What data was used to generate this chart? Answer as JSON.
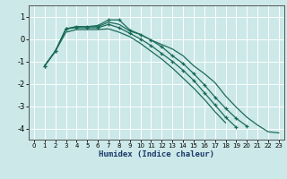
{
  "xlabel": "Humidex (Indice chaleur)",
  "background_color": "#cce8e8",
  "grid_color": "#ffffff",
  "line_color": "#1a6b5a",
  "xlim": [
    -0.5,
    23.5
  ],
  "ylim": [
    -4.5,
    1.5
  ],
  "yticks": [
    -4,
    -3,
    -2,
    -1,
    0,
    1
  ],
  "xticks": [
    0,
    1,
    2,
    3,
    4,
    5,
    6,
    7,
    8,
    9,
    10,
    11,
    12,
    13,
    14,
    15,
    16,
    17,
    18,
    19,
    20,
    21,
    22,
    23
  ],
  "series": [
    {
      "x": [
        1,
        2,
        3,
        4,
        5,
        6,
        7,
        8,
        9,
        10,
        11,
        12,
        13,
        14,
        15,
        16,
        17,
        18,
        19,
        20,
        21,
        22,
        23
      ],
      "y": [
        -1.2,
        -0.55,
        0.45,
        0.55,
        0.55,
        0.55,
        0.75,
        0.65,
        0.35,
        0.2,
        -0.05,
        -0.25,
        -0.45,
        -0.75,
        -1.2,
        -1.55,
        -1.95,
        -2.55,
        -3.05,
        -3.5,
        -3.85,
        -4.15,
        -4.2
      ],
      "marker": false
    },
    {
      "x": [
        1,
        2,
        3,
        4,
        5,
        6,
        7,
        8,
        9,
        10,
        11,
        12,
        13,
        14,
        15,
        16,
        17,
        18,
        19,
        20
      ],
      "y": [
        -1.2,
        -0.55,
        0.45,
        0.55,
        0.55,
        0.6,
        0.85,
        0.85,
        0.4,
        0.2,
        -0.05,
        -0.35,
        -0.75,
        -1.1,
        -1.55,
        -2.05,
        -2.6,
        -3.1,
        -3.55,
        -3.9
      ],
      "marker": true
    },
    {
      "x": [
        1,
        2,
        3,
        4,
        5,
        6,
        7,
        8,
        9,
        10,
        11,
        12,
        13,
        14,
        15,
        16,
        17,
        18,
        19
      ],
      "y": [
        -1.2,
        -0.55,
        0.45,
        0.5,
        0.5,
        0.5,
        0.65,
        0.5,
        0.25,
        0.0,
        -0.3,
        -0.65,
        -1.0,
        -1.4,
        -1.85,
        -2.4,
        -2.95,
        -3.5,
        -3.95
      ],
      "marker": true
    },
    {
      "x": [
        1,
        2,
        3,
        4,
        5,
        6,
        7,
        8,
        9,
        10,
        11,
        12,
        13,
        14,
        15,
        16,
        17,
        18
      ],
      "y": [
        -1.2,
        -0.55,
        0.3,
        0.42,
        0.42,
        0.42,
        0.45,
        0.3,
        0.1,
        -0.2,
        -0.55,
        -0.9,
        -1.3,
        -1.75,
        -2.2,
        -2.7,
        -3.25,
        -3.75
      ],
      "marker": false
    }
  ]
}
